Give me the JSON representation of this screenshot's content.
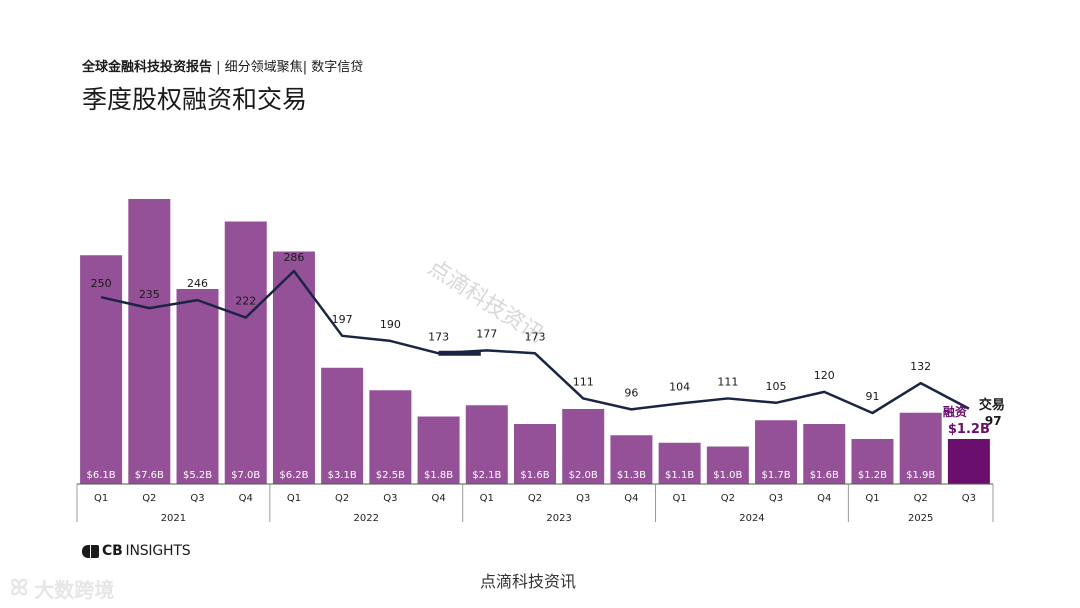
{
  "header": {
    "subtitle_bold": "全球金融科技投资报告",
    "subtitle_sep1": " | ",
    "subtitle_rest1": "细分领域聚焦",
    "subtitle_sep2": "| ",
    "subtitle_rest2": "数字信贷",
    "title": "季度股权融资和交易"
  },
  "chart_data": {
    "type": "bar",
    "title": "季度股权融资和交易",
    "categories": [
      "Q1",
      "Q2",
      "Q3",
      "Q4",
      "Q1",
      "Q2",
      "Q3",
      "Q4",
      "Q1",
      "Q2",
      "Q3",
      "Q4",
      "Q1",
      "Q2",
      "Q3",
      "Q4",
      "Q1",
      "Q2",
      "Q3"
    ],
    "years": [
      {
        "label": "2021",
        "count": 4
      },
      {
        "label": "2022",
        "count": 4
      },
      {
        "label": "2023",
        "count": 4
      },
      {
        "label": "2024",
        "count": 4
      },
      {
        "label": "2025",
        "count": 3
      }
    ],
    "series": [
      {
        "name": "融资",
        "kind": "bar",
        "unit": "$B",
        "values": [
          6.1,
          7.6,
          5.2,
          7.0,
          6.2,
          3.1,
          2.5,
          1.8,
          2.1,
          1.6,
          2.0,
          1.3,
          1.1,
          1.0,
          1.7,
          1.6,
          1.2,
          1.9,
          1.2
        ],
        "labels": [
          "$6.1B",
          "$7.6B",
          "$5.2B",
          "$7.0B",
          "$6.2B",
          "$3.1B",
          "$2.5B",
          "$1.8B",
          "$2.1B",
          "$1.6B",
          "$2.0B",
          "$1.3B",
          "$1.1B",
          "$1.0B",
          "$1.7B",
          "$1.6B",
          "$1.2B",
          "$1.9B",
          "$1.2B"
        ]
      },
      {
        "name": "交易",
        "kind": "line",
        "values": [
          250,
          235,
          246,
          222,
          286,
          197,
          190,
          173,
          177,
          173,
          111,
          96,
          104,
          111,
          105,
          120,
          91,
          132,
          97
        ]
      }
    ],
    "legend": {
      "funding_label": "融资",
      "deals_label": "交易",
      "last_funding": "$1.2B",
      "last_deals": "97"
    },
    "bar_ylim": [
      0,
      7.6
    ],
    "line_ylim": [
      0,
      300
    ],
    "colors": {
      "bar": "#955198",
      "bar_highlight": "#6b0f6e",
      "line": "#1b2543",
      "label_on_bar": "#ffffff",
      "axis": "#555555"
    }
  },
  "footer": {
    "brand_bold": "CB",
    "brand_rest": "INSIGHTS",
    "source": "点滴科技资讯",
    "watermark": "点滴科技资讯",
    "corner_logo": "大数跨境"
  }
}
